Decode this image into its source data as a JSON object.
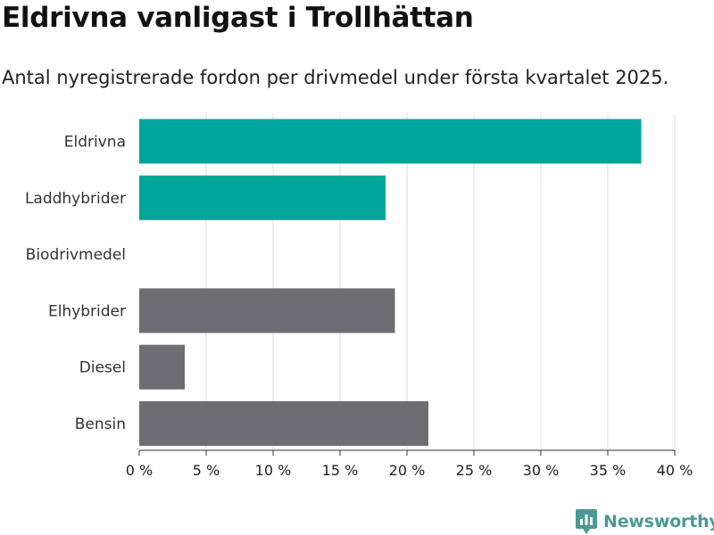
{
  "title": "Eldrivna vanligast i Trollhättan",
  "subtitle": "Antal nyregistrerade fordon per drivmedel under första kvartalet 2025.",
  "brand": {
    "name": "Newsworthy",
    "icon": "bar-chart-logo-icon",
    "color": "#4a9a94"
  },
  "chart_data": {
    "type": "bar",
    "orientation": "horizontal",
    "title": "Eldrivna vanligast i Trollhättan",
    "subtitle": "Antal nyregistrerade fordon per drivmedel under första kvartalet 2025.",
    "categories": [
      "Eldrivna",
      "Laddhybrider",
      "Biodrivmedel",
      "Elhybrider",
      "Diesel",
      "Bensin"
    ],
    "values": [
      37.5,
      18.4,
      0,
      19.1,
      3.4,
      21.6
    ],
    "colors": [
      "#00a59a",
      "#00a59a",
      "#00a59a",
      "#6e6d73",
      "#6e6d73",
      "#6e6d73"
    ],
    "xlim": [
      0,
      40
    ],
    "xticks": [
      0,
      5,
      10,
      15,
      20,
      25,
      30,
      35,
      40
    ],
    "xtick_labels": [
      "0 %",
      "5 %",
      "10 %",
      "15 %",
      "20 %",
      "25 %",
      "30 %",
      "35 %",
      "40 %"
    ],
    "grid": true,
    "xlabel": "",
    "ylabel": ""
  }
}
